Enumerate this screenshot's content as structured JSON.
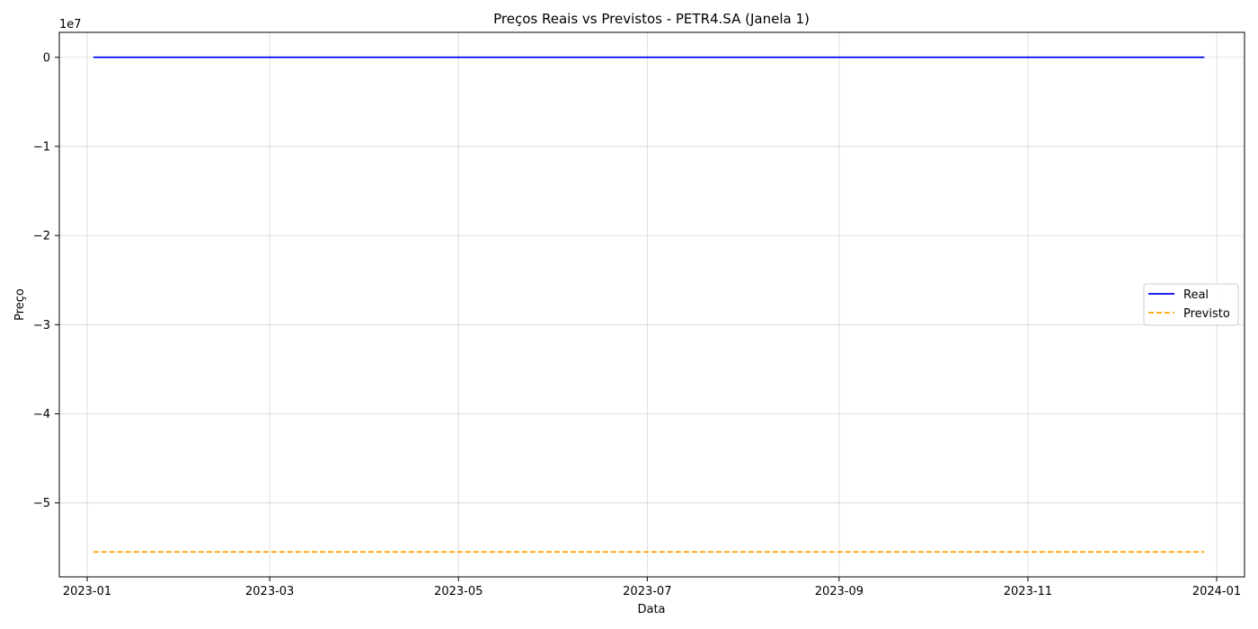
{
  "chart_data": {
    "type": "line",
    "title": "Preços Reais vs Previstos - PETR4.SA (Janela 1)",
    "xlabel": "Data",
    "ylabel": "Preço",
    "y_offset_label": "1e7",
    "x_range": [
      "2022-12-23",
      "2024-01-10"
    ],
    "ylim": [
      -5.83,
      0.28
    ],
    "y_scale_multiplier": 10000000,
    "grid": true,
    "legend_position": "center-right",
    "x_ticks": [
      {
        "date": "2023-01-01",
        "label": "2023-01"
      },
      {
        "date": "2023-03-01",
        "label": "2023-03"
      },
      {
        "date": "2023-05-01",
        "label": "2023-05"
      },
      {
        "date": "2023-07-01",
        "label": "2023-07"
      },
      {
        "date": "2023-09-01",
        "label": "2023-09"
      },
      {
        "date": "2023-11-01",
        "label": "2023-11"
      },
      {
        "date": "2024-01-01",
        "label": "2024-01"
      }
    ],
    "y_ticks": [
      {
        "value": 0,
        "label": "0"
      },
      {
        "value": -1,
        "label": "−1"
      },
      {
        "value": -2,
        "label": "−2"
      },
      {
        "value": -3,
        "label": "−3"
      },
      {
        "value": -4,
        "label": "−4"
      },
      {
        "value": -5,
        "label": "−5"
      }
    ],
    "series": [
      {
        "name": "Real",
        "color": "#0000ff",
        "dash": "solid",
        "x": [
          "2023-01-03",
          "2023-12-28"
        ],
        "y": [
          0,
          0
        ]
      },
      {
        "name": "Previsto",
        "color": "#ffa500",
        "dash": "dashed",
        "x": [
          "2023-01-03",
          "2023-12-28"
        ],
        "y": [
          -5.55,
          -5.55
        ]
      }
    ]
  }
}
